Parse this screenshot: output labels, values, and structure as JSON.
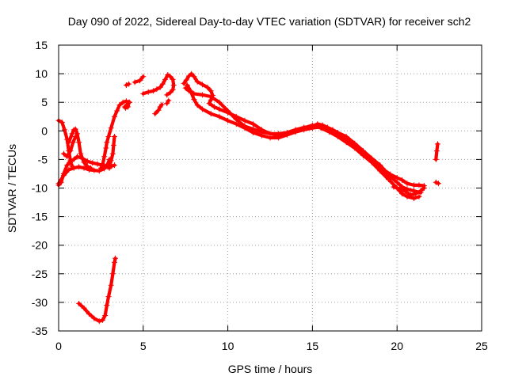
{
  "chart_data": {
    "type": "scatter",
    "title": "Day 090 of 2022, Sidereal Day-to-day VTEC variation (SDTVAR) for receiver sch2",
    "xlabel": "GPS time / hours",
    "ylabel": "SDTVAR / TECUs",
    "xlim": [
      0,
      25
    ],
    "ylim": [
      -35,
      15
    ],
    "xticks": [
      0,
      5,
      10,
      15,
      20,
      25
    ],
    "yticks": [
      15,
      10,
      5,
      0,
      -5,
      -10,
      -15,
      -20,
      -25,
      -30,
      -35
    ],
    "xtick_labels": [
      "0",
      "5",
      "10",
      "15",
      "20",
      "25"
    ],
    "ytick_labels": [
      "15",
      "10",
      "5",
      "0",
      "-5",
      "-10",
      "-15",
      "-20",
      "-25",
      "-30",
      "-35"
    ],
    "grid": true,
    "marker": "+",
    "series": [
      {
        "name": "SDTVAR",
        "color": "#ff0000",
        "segments": [
          [
            [
              0.0,
              1.8
            ],
            [
              0.2,
              1.5
            ],
            [
              0.35,
              0.2
            ],
            [
              0.5,
              -1.5
            ],
            [
              0.6,
              -3.5
            ],
            [
              0.7,
              -5.2
            ],
            [
              0.8,
              -6.2
            ]
          ],
          [
            [
              0.0,
              -9.5
            ],
            [
              0.15,
              -9.0
            ],
            [
              0.3,
              -7.5
            ],
            [
              0.5,
              -6.0
            ],
            [
              0.7,
              -5.3
            ],
            [
              0.9,
              -5.0
            ],
            [
              1.1,
              -4.5
            ],
            [
              1.4,
              -4.8
            ],
            [
              1.7,
              -5.3
            ],
            [
              2.0,
              -5.6
            ],
            [
              2.3,
              -5.8
            ],
            [
              2.6,
              -6.0
            ],
            [
              2.9,
              -6.3
            ],
            [
              3.1,
              -6.2
            ],
            [
              3.3,
              -6.0
            ]
          ],
          [
            [
              0.0,
              -9.2
            ],
            [
              0.3,
              -7.8
            ],
            [
              0.6,
              -6.8
            ],
            [
              0.9,
              -6.5
            ],
            [
              1.2,
              -6.3
            ],
            [
              1.5,
              -6.5
            ],
            [
              1.8,
              -6.8
            ],
            [
              2.1,
              -6.9
            ],
            [
              2.4,
              -7.0
            ],
            [
              2.7,
              -6.6
            ],
            [
              2.9,
              -5.8
            ],
            [
              3.0,
              -5.0
            ]
          ],
          [
            [
              0.6,
              -2.0
            ],
            [
              0.8,
              -0.5
            ],
            [
              0.9,
              0.2
            ],
            [
              1.0,
              0.3
            ],
            [
              1.1,
              -0.5
            ],
            [
              1.2,
              -2.0
            ],
            [
              1.3,
              -4.0
            ],
            [
              1.5,
              -5.5
            ],
            [
              1.7,
              -6.2
            ],
            [
              1.9,
              -6.5
            ]
          ],
          [
            [
              0.3,
              -4.0
            ],
            [
              0.5,
              -4.5
            ],
            [
              0.7,
              -3.5
            ],
            [
              0.85,
              -2.0
            ],
            [
              1.0,
              -1.0
            ]
          ],
          [
            [
              2.5,
              -6.5
            ],
            [
              2.6,
              -6.0
            ],
            [
              2.7,
              -4.5
            ],
            [
              2.8,
              -3.0
            ],
            [
              2.85,
              -2.0
            ],
            [
              2.95,
              -1.0
            ],
            [
              3.1,
              0.5
            ],
            [
              3.3,
              2.5
            ],
            [
              3.45,
              3.5
            ],
            [
              3.6,
              4.5
            ],
            [
              3.8,
              5.0
            ],
            [
              4.0,
              5.2
            ],
            [
              4.15,
              5.0
            ],
            [
              4.1,
              4.2
            ],
            [
              3.95,
              4.0
            ]
          ],
          [
            [
              3.0,
              -6.5
            ],
            [
              3.1,
              -5.2
            ],
            [
              3.2,
              -4.0
            ],
            [
              3.25,
              -2.5
            ],
            [
              3.3,
              -1.0
            ]
          ],
          [
            [
              1.2,
              -30.2
            ],
            [
              1.5,
              -31.0
            ],
            [
              1.8,
              -32.0
            ],
            [
              2.1,
              -32.8
            ],
            [
              2.4,
              -33.3
            ],
            [
              2.6,
              -33.1
            ],
            [
              2.75,
              -32.3
            ],
            [
              2.85,
              -30.5
            ],
            [
              2.95,
              -29.0
            ],
            [
              3.1,
              -27.0
            ],
            [
              3.2,
              -25.0
            ],
            [
              3.3,
              -23.0
            ],
            [
              3.35,
              -22.3
            ]
          ],
          [
            [
              3.9,
              4.2
            ],
            [
              4.05,
              4.6
            ],
            [
              4.2,
              5.0
            ]
          ],
          [
            [
              4.0,
              8.0
            ],
            [
              4.15,
              8.2
            ]
          ],
          [
            [
              4.5,
              8.5
            ],
            [
              4.8,
              8.8
            ],
            [
              5.0,
              9.5
            ]
          ],
          [
            [
              5.0,
              6.5
            ],
            [
              5.3,
              6.8
            ],
            [
              5.6,
              7.0
            ],
            [
              5.8,
              7.3
            ],
            [
              6.0,
              7.6
            ],
            [
              6.15,
              8.2
            ],
            [
              6.3,
              9.0
            ],
            [
              6.45,
              9.8
            ],
            [
              6.6,
              9.5
            ],
            [
              6.75,
              9.0
            ],
            [
              6.8,
              8.0
            ],
            [
              6.75,
              7.2
            ],
            [
              6.6,
              6.7
            ],
            [
              6.4,
              6.3
            ]
          ],
          [
            [
              5.7,
              3.0
            ],
            [
              5.9,
              3.6
            ],
            [
              6.0,
              4.2
            ],
            [
              6.1,
              4.6
            ]
          ],
          [
            [
              6.4,
              4.8
            ],
            [
              6.5,
              5.3
            ]
          ],
          [
            [
              7.4,
              8.3
            ],
            [
              7.55,
              8.9
            ],
            [
              7.7,
              9.6
            ],
            [
              7.85,
              10.0
            ],
            [
              8.0,
              9.5
            ],
            [
              8.2,
              8.6
            ],
            [
              8.5,
              8.1
            ],
            [
              8.8,
              7.6
            ],
            [
              9.0,
              7.0
            ],
            [
              9.1,
              6.2
            ],
            [
              9.0,
              5.4
            ],
            [
              8.9,
              4.8
            ],
            [
              9.2,
              4.2
            ],
            [
              9.5,
              3.8
            ],
            [
              10.0,
              3.2
            ],
            [
              10.5,
              2.5
            ],
            [
              11.0,
              1.8
            ],
            [
              11.5,
              1.2
            ],
            [
              12.0,
              0.2
            ],
            [
              12.5,
              -0.5
            ],
            [
              13.0,
              -0.5
            ],
            [
              13.5,
              -0.3
            ],
            [
              14.0,
              0.2
            ],
            [
              14.5,
              0.6
            ],
            [
              15.0,
              0.8
            ],
            [
              15.3,
              1.2
            ],
            [
              15.6,
              1.0
            ],
            [
              15.9,
              0.6
            ],
            [
              16.2,
              0.2
            ],
            [
              16.5,
              -0.3
            ],
            [
              17.0,
              -1.0
            ],
            [
              17.5,
              -2.2
            ],
            [
              18.0,
              -3.5
            ],
            [
              18.5,
              -4.8
            ],
            [
              19.0,
              -6.0
            ],
            [
              19.3,
              -7.0
            ],
            [
              19.6,
              -7.6
            ],
            [
              20.0,
              -8.2
            ],
            [
              20.3,
              -8.6
            ],
            [
              20.6,
              -9.2
            ],
            [
              21.0,
              -9.5
            ],
            [
              21.3,
              -9.5
            ],
            [
              21.6,
              -9.6
            ]
          ],
          [
            [
              7.6,
              8.0
            ],
            [
              7.8,
              7.0
            ],
            [
              8.0,
              5.5
            ],
            [
              8.2,
              4.5
            ],
            [
              8.5,
              3.8
            ],
            [
              9.0,
              3.0
            ],
            [
              9.5,
              2.5
            ],
            [
              10.0,
              1.8
            ],
            [
              10.5,
              1.2
            ],
            [
              11.0,
              0.5
            ],
            [
              11.5,
              -0.3
            ],
            [
              12.0,
              -0.8
            ],
            [
              12.5,
              -1.2
            ],
            [
              13.0,
              -1.2
            ],
            [
              13.5,
              -0.7
            ],
            [
              14.0,
              -0.2
            ],
            [
              14.5,
              0.2
            ],
            [
              15.0,
              0.5
            ],
            [
              15.5,
              0.7
            ],
            [
              16.0,
              0.2
            ],
            [
              16.5,
              -0.6
            ],
            [
              17.0,
              -1.5
            ],
            [
              17.5,
              -2.5
            ],
            [
              18.0,
              -3.8
            ],
            [
              18.5,
              -5.0
            ],
            [
              19.0,
              -6.5
            ],
            [
              19.5,
              -7.8
            ],
            [
              20.0,
              -9.0
            ],
            [
              20.3,
              -9.8
            ],
            [
              20.6,
              -10.2
            ],
            [
              21.0,
              -10.5
            ],
            [
              21.4,
              -10.8
            ]
          ],
          [
            [
              7.5,
              7.5
            ],
            [
              7.7,
              7.0
            ],
            [
              8.0,
              6.5
            ],
            [
              8.5,
              6.3
            ],
            [
              9.0,
              6.0
            ],
            [
              9.5,
              5.0
            ],
            [
              10.0,
              3.5
            ],
            [
              10.5,
              2.0
            ],
            [
              11.0,
              0.8
            ],
            [
              11.5,
              0.3
            ],
            [
              12.0,
              -0.2
            ],
            [
              12.5,
              -0.5
            ],
            [
              13.0,
              -0.8
            ],
            [
              13.5,
              -0.5
            ],
            [
              14.0,
              0.0
            ],
            [
              14.5,
              0.5
            ],
            [
              15.0,
              1.0
            ],
            [
              15.5,
              0.5
            ],
            [
              16.0,
              -0.2
            ],
            [
              16.5,
              -1.0
            ],
            [
              17.0,
              -2.0
            ],
            [
              17.5,
              -3.0
            ],
            [
              18.0,
              -4.3
            ],
            [
              18.5,
              -5.5
            ],
            [
              19.0,
              -7.0
            ],
            [
              19.5,
              -8.5
            ],
            [
              20.0,
              -10.0
            ],
            [
              20.3,
              -11.0
            ],
            [
              20.6,
              -11.5
            ],
            [
              21.0,
              -11.8
            ],
            [
              21.3,
              -11.5
            ]
          ],
          [
            [
              19.8,
              -9.8
            ],
            [
              20.2,
              -10.2
            ],
            [
              20.5,
              -10.6
            ],
            [
              20.8,
              -11.2
            ],
            [
              21.1,
              -11.0
            ],
            [
              21.4,
              -10.5
            ],
            [
              21.6,
              -10.0
            ]
          ],
          [
            [
              22.3,
              -9.0
            ],
            [
              22.45,
              -9.2
            ]
          ],
          [
            [
              22.3,
              -5.0
            ],
            [
              22.35,
              -3.5
            ],
            [
              22.4,
              -2.3
            ]
          ]
        ]
      }
    ]
  }
}
